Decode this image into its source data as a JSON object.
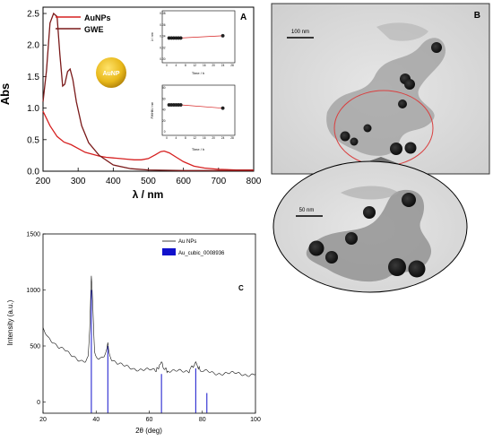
{
  "chart_data": [
    {
      "panel": "A",
      "type": "line",
      "xlabel": "λ / nm",
      "ylabel": "Abs",
      "xlim": [
        200,
        800
      ],
      "ylim": [
        0,
        2.6
      ],
      "xticks": [
        "200",
        "300",
        "400",
        "500",
        "600",
        "700",
        "800"
      ],
      "yticks": [
        "0.0",
        "0.5",
        "1.0",
        "1.5",
        "2.0",
        "2.5"
      ],
      "legend_position": "top-left",
      "series": [
        {
          "name": "AuNPs",
          "color": "#d62020",
          "x": [
            200,
            220,
            240,
            260,
            280,
            300,
            320,
            340,
            360,
            380,
            400,
            420,
            440,
            460,
            480,
            500,
            520,
            535,
            545,
            560,
            580,
            600,
            630,
            660,
            700,
            750,
            800
          ],
          "y": [
            0.95,
            0.72,
            0.55,
            0.46,
            0.42,
            0.36,
            0.3,
            0.27,
            0.24,
            0.22,
            0.21,
            0.2,
            0.19,
            0.18,
            0.18,
            0.2,
            0.26,
            0.31,
            0.32,
            0.29,
            0.22,
            0.15,
            0.08,
            0.05,
            0.03,
            0.02,
            0.02
          ]
        },
        {
          "name": "GWE",
          "color": "#7a1a1a",
          "x": [
            200,
            210,
            220,
            230,
            240,
            248,
            256,
            262,
            270,
            277,
            285,
            295,
            310,
            330,
            360,
            400,
            450,
            500,
            600,
            700,
            800
          ],
          "y": [
            1.1,
            1.6,
            2.35,
            2.5,
            2.45,
            1.85,
            1.35,
            1.38,
            1.58,
            1.62,
            1.45,
            1.1,
            0.72,
            0.45,
            0.25,
            0.1,
            0.04,
            0.02,
            0.01,
            0.01,
            0.01
          ]
        }
      ],
      "badge": "AuNP",
      "insets": [
        {
          "type": "scatter",
          "xlabel": "Time / h",
          "ylabel": "λ / nm",
          "xlim": [
            0,
            28
          ],
          "ylim": [
            0,
            0.08
          ],
          "xticks": [
            "0",
            "4",
            "8",
            "12",
            "16",
            "20",
            "24",
            "28"
          ],
          "yticks": [
            "0.00",
            "0.02",
            "0.04",
            "0.06",
            "0.08"
          ],
          "x": [
            1,
            2,
            3,
            4,
            5,
            6,
            24
          ],
          "y": [
            0.037,
            0.037,
            0.037,
            0.037,
            0.037,
            0.037,
            0.041
          ]
        },
        {
          "type": "scatter",
          "xlabel": "Time / h",
          "ylabel": "FWHM / nm",
          "xlim": [
            0,
            28
          ],
          "ylim": [
            0,
            80
          ],
          "xticks": [
            "0",
            "4",
            "8",
            "12",
            "16",
            "20",
            "24",
            "28"
          ],
          "yticks": [
            "0",
            "20",
            "40",
            "60",
            "80"
          ],
          "x": [
            1,
            2,
            3,
            4,
            5,
            6,
            24
          ],
          "y": [
            49,
            49,
            49,
            49,
            49,
            49,
            43
          ]
        }
      ]
    },
    {
      "panel": "C",
      "type": "line",
      "xlabel": "2θ (deg)",
      "ylabel": "Intensity (a.u.)",
      "xlim": [
        20,
        100
      ],
      "ylim": [
        -100,
        1500
      ],
      "xticks": [
        "20",
        "40",
        "60",
        "80",
        "100"
      ],
      "yticks": [
        "0",
        "500",
        "1000",
        "1500"
      ],
      "legend_position": "top-right",
      "series": [
        {
          "name": "Au NPs",
          "color": "#111111",
          "x": [
            20,
            22,
            24,
            26,
            28,
            30,
            32,
            34,
            36,
            37,
            37.6,
            38.2,
            38.8,
            39.4,
            40,
            41,
            42,
            43,
            44,
            44.4,
            45,
            46,
            48,
            50,
            55,
            60,
            62,
            63.5,
            64.6,
            65.5,
            67,
            70,
            73,
            75,
            76.5,
            77.5,
            78.5,
            80,
            84,
            88,
            92,
            96,
            100
          ],
          "y": [
            650,
            580,
            540,
            490,
            460,
            420,
            400,
            380,
            370,
            400,
            650,
            1140,
            820,
            450,
            390,
            380,
            390,
            420,
            480,
            510,
            440,
            380,
            340,
            320,
            300,
            280,
            280,
            300,
            350,
            300,
            280,
            270,
            270,
            280,
            330,
            360,
            300,
            270,
            260,
            260,
            250,
            250,
            250
          ]
        },
        {
          "name": "Au_cubic_0008936",
          "type": "bar",
          "color": "#1111cc",
          "x": [
            38.2,
            44.4,
            64.6,
            77.5,
            81.7
          ],
          "y": [
            1000,
            500,
            250,
            300,
            80
          ]
        }
      ]
    }
  ],
  "panels": {
    "A": {
      "label": "A"
    },
    "B": {
      "label": "B",
      "scale_top": "100 nm",
      "scale_zoom": "50 nm"
    },
    "C": {
      "label": "C"
    }
  },
  "legend_A": {
    "item1": "AuNPs",
    "item2": "GWE"
  },
  "legend_C": {
    "item1": "Au NPs",
    "item2": "Au_cubic_0008936"
  },
  "colors": {
    "aunps": "#d62020",
    "gwe": "#7a1a1a",
    "badge": "#e8b81a",
    "xrd": "#111111",
    "ref": "#1111cc"
  }
}
